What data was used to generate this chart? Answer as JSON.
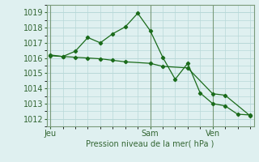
{
  "background_color": "#dff0f0",
  "grid_color": "#b8d8d8",
  "line_color": "#1a6b1a",
  "marker_color": "#1a6b1a",
  "xlabel": "Pression niveau de la mer( hPa )",
  "ylim": [
    1011.5,
    1019.5
  ],
  "yticks": [
    1012,
    1013,
    1014,
    1015,
    1016,
    1017,
    1018,
    1019
  ],
  "day_labels": [
    "Jeu",
    "Sam",
    "Ven"
  ],
  "day_positions": [
    0,
    8,
    13
  ],
  "xlim": [
    -0.3,
    16.3
  ],
  "line1_x": [
    0,
    1,
    2,
    3,
    4,
    5,
    6,
    7,
    8,
    9,
    10,
    11,
    12,
    13,
    14,
    15,
    16
  ],
  "line1_y": [
    1016.2,
    1016.1,
    1016.45,
    1017.35,
    1017.0,
    1017.6,
    1018.05,
    1018.95,
    1017.8,
    1016.05,
    1014.6,
    1015.65,
    1013.7,
    1013.0,
    1012.85,
    1012.3,
    1012.25
  ],
  "line2_x": [
    0,
    1,
    2,
    3,
    4,
    5,
    6,
    8,
    9,
    11,
    13,
    14,
    16
  ],
  "line2_y": [
    1016.15,
    1016.1,
    1016.05,
    1016.0,
    1015.95,
    1015.85,
    1015.75,
    1015.65,
    1015.45,
    1015.35,
    1013.65,
    1013.55,
    1012.2
  ],
  "figsize": [
    3.2,
    2.0
  ],
  "dpi": 100
}
